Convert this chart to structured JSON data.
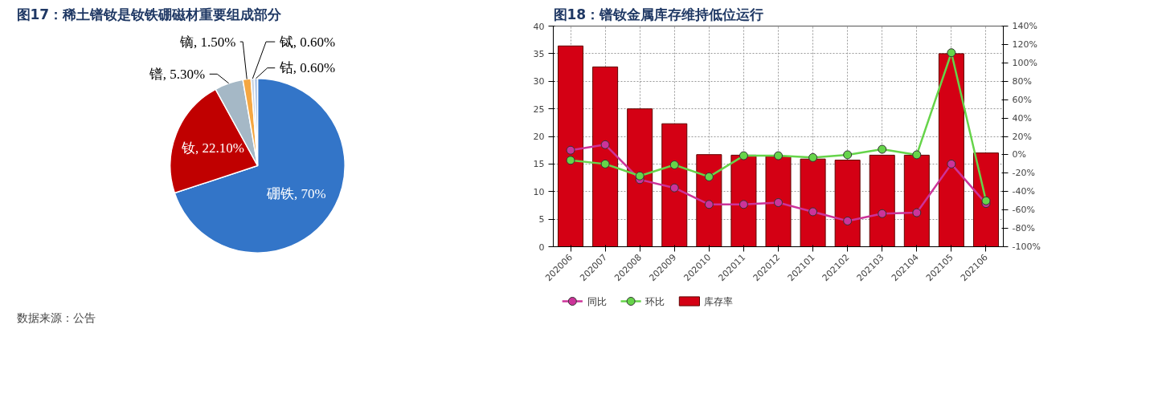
{
  "chart_data": [
    {
      "type": "pie",
      "title": "图17：稀土镨钕是钕铁硼磁材重要组成部分",
      "categories": [
        "硼铁",
        "钕",
        "镨",
        "镝",
        "铽",
        "钴"
      ],
      "values": [
        70,
        22.1,
        5.3,
        1.5,
        0.6,
        0.6
      ],
      "colors": [
        "#3375c8",
        "#c00000",
        "#a5b8c6",
        "#f5a742",
        "#c9d3e0",
        "#a9c4e8"
      ],
      "value_labels": [
        "70%",
        "22.10%",
        "5.30%",
        "1.50%",
        "0.60%",
        "0.60%"
      ],
      "annotations": [
        "数据来源：公告"
      ]
    },
    {
      "type": "bar",
      "title": "图18：镨钕金属库存维持低位运行",
      "categories": [
        "202006",
        "202007",
        "202008",
        "202009",
        "202010",
        "202011",
        "202012",
        "202101",
        "202102",
        "202103",
        "202104",
        "202105",
        "202106"
      ],
      "series": [
        {
          "name": "同比",
          "type": "line",
          "axis": "y2",
          "color": "#cc3399",
          "values": [
            5,
            11,
            -27,
            -36,
            -54,
            -54,
            -52,
            -62,
            -72,
            -64,
            -63,
            -10,
            -53
          ]
        },
        {
          "name": "环比",
          "type": "line",
          "axis": "y2",
          "color": "#66d44a",
          "values": [
            -6,
            -10,
            -23,
            -11,
            -24,
            -1,
            -1,
            -3,
            0,
            6,
            0,
            111,
            -50
          ]
        },
        {
          "name": "库存率",
          "type": "bar",
          "color": "#d40014",
          "values": [
            36.4,
            32.6,
            25,
            22.3,
            16.7,
            16.6,
            16.4,
            15.9,
            15.7,
            16.6,
            16.6,
            35,
            17
          ]
        }
      ],
      "ylim": [
        0,
        40
      ],
      "yticks": [
        0,
        5,
        10,
        15,
        20,
        25,
        30,
        35,
        40
      ],
      "y2lim": [
        -100,
        140
      ],
      "y2ticks": [
        {
          "value": -100,
          "label": "-100%"
        },
        {
          "value": -80,
          "label": "-80%"
        },
        {
          "value": -60,
          "label": "-60%"
        },
        {
          "value": -40,
          "label": "-40%"
        },
        {
          "value": -20,
          "label": "-20%"
        },
        {
          "value": 0,
          "label": "0%"
        },
        {
          "value": 20,
          "label": "20%"
        },
        {
          "value": 40,
          "label": "40%"
        },
        {
          "value": 60,
          "label": "60%"
        },
        {
          "value": 80,
          "label": "80%"
        },
        {
          "value": 100,
          "label": "100%"
        },
        {
          "value": 120,
          "label": "120%"
        },
        {
          "value": 140,
          "label": "140%"
        }
      ],
      "grid": true,
      "legend": "bottom",
      "marker": "circle"
    }
  ]
}
